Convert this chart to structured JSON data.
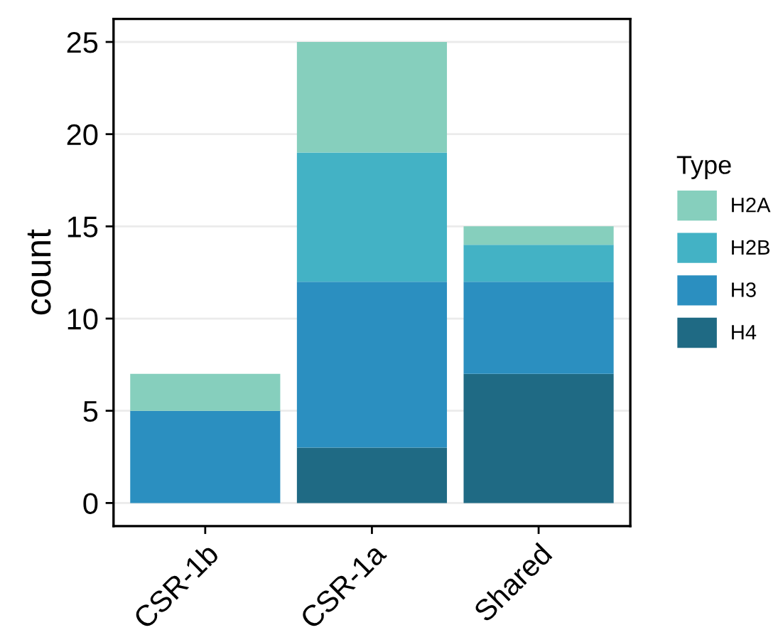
{
  "chart_data": {
    "type": "bar",
    "stacked": true,
    "ylabel": "count",
    "legend_title": "Type",
    "legend": "right",
    "categories": [
      "CSR-1b",
      "CSR-1a",
      "Shared"
    ],
    "series": [
      {
        "name": "H4",
        "color": "#1f6a84",
        "values": [
          0,
          3,
          7
        ]
      },
      {
        "name": "H3",
        "color": "#2b8fc0",
        "values": [
          5,
          9,
          5
        ]
      },
      {
        "name": "H2B",
        "color": "#43b2c5",
        "values": [
          0,
          7,
          2
        ]
      },
      {
        "name": "H2A",
        "color": "#86cfbd",
        "values": [
          2,
          6,
          1
        ]
      }
    ],
    "ylim": [
      -1.25,
      26.25
    ],
    "yticks": [
      0,
      5,
      10,
      15,
      20,
      25
    ],
    "grid": "y"
  }
}
